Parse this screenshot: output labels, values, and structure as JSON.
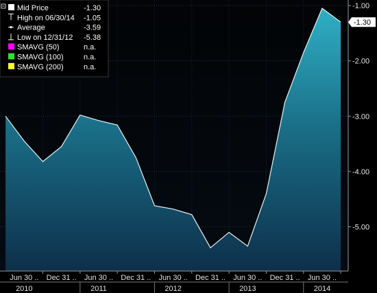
{
  "chart_data": {
    "type": "area",
    "legend_position": "top-left",
    "grid": true,
    "ylim": [
      -5.8,
      -0.9
    ],
    "y_ticks": [
      -1.0,
      -2.0,
      -3.0,
      -4.0,
      -5.0
    ],
    "y_tick_labels": [
      "-1.00",
      "-2.00",
      "-3.00",
      "-4.00",
      "-5.00"
    ],
    "last_value_label": "-1.30",
    "x_categories": [
      "Jun 30",
      "Dec 31",
      "Jun 30",
      "Dec 31",
      "Jun 30",
      "Dec 31",
      "Jun 30",
      "Dec 31",
      "Jun 30"
    ],
    "x_years": [
      "2010",
      "2011",
      "2012",
      "2013",
      "2014"
    ],
    "legend": [
      {
        "label": "Mid Price",
        "value": "-1.30",
        "marker": "square",
        "color": "#ffffff"
      },
      {
        "label": "High on 06/30/14",
        "value": "-1.05",
        "marker": "high",
        "color": "#ffffff"
      },
      {
        "label": "Average",
        "value": "-3.59",
        "marker": "avg",
        "color": "#ffffff"
      },
      {
        "label": "Low on 12/31/12",
        "value": "-5.38",
        "marker": "low",
        "color": "#ffffff"
      },
      {
        "label": "SMAVG (50)",
        "value": "n.a.",
        "marker": "square",
        "color": "#ff00ff"
      },
      {
        "label": "SMAVG (100)",
        "value": "n.a.",
        "marker": "square",
        "color": "#33dd33"
      },
      {
        "label": "SMAVG (200)",
        "value": "n.a.",
        "marker": "square",
        "color": "#ffff33"
      }
    ],
    "series": [
      {
        "values": [
          {
            "t": 0.0,
            "y": -3.0
          },
          {
            "t": 0.5,
            "y": -3.45
          },
          {
            "t": 1.0,
            "y": -3.82
          },
          {
            "t": 1.5,
            "y": -3.55
          },
          {
            "t": 2.0,
            "y": -2.98
          },
          {
            "t": 2.5,
            "y": -3.08
          },
          {
            "t": 3.0,
            "y": -3.16
          },
          {
            "t": 3.5,
            "y": -3.75
          },
          {
            "t": 4.0,
            "y": -4.62
          },
          {
            "t": 4.5,
            "y": -4.68
          },
          {
            "t": 5.0,
            "y": -4.78
          },
          {
            "t": 5.5,
            "y": -5.38
          },
          {
            "t": 6.0,
            "y": -5.1
          },
          {
            "t": 6.5,
            "y": -5.35
          },
          {
            "t": 7.0,
            "y": -4.4
          },
          {
            "t": 7.5,
            "y": -2.75
          },
          {
            "t": 8.0,
            "y": -1.85
          },
          {
            "t": 8.5,
            "y": -1.05
          },
          {
            "t": 9.0,
            "y": -1.3
          }
        ]
      }
    ]
  }
}
